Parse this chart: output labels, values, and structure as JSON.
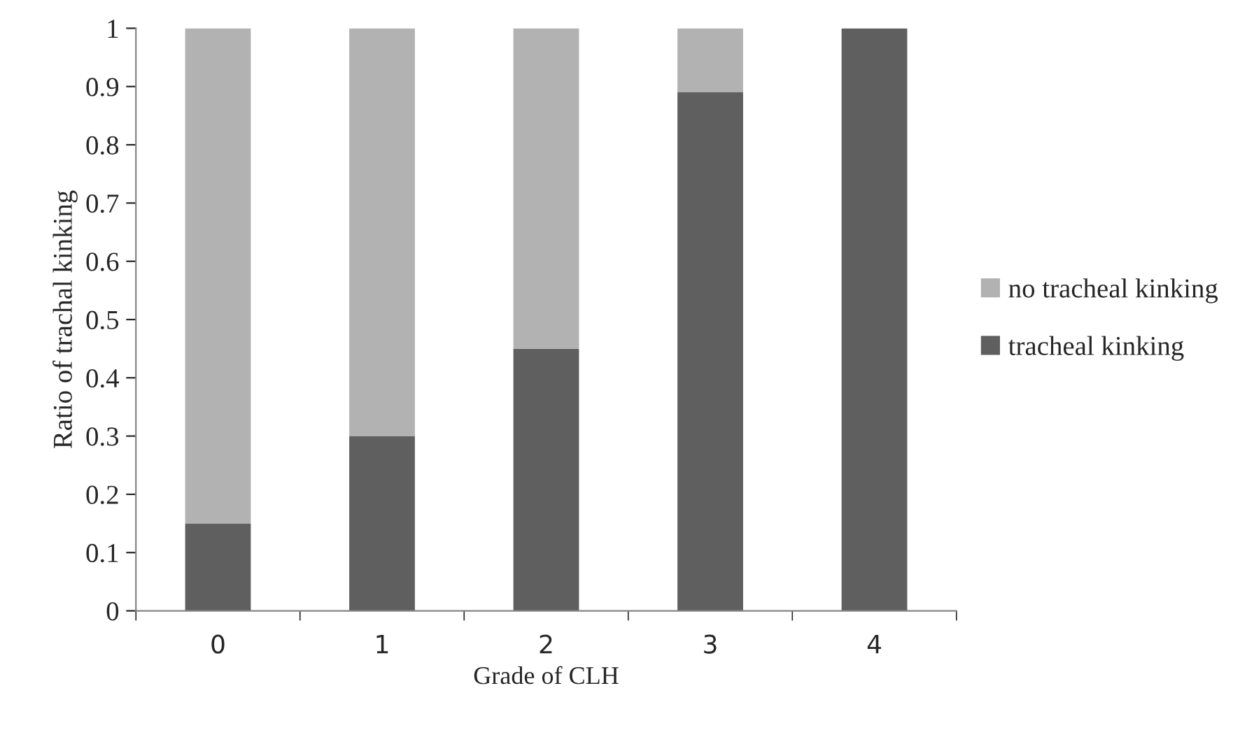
{
  "chart_data": {
    "type": "bar",
    "stacked": true,
    "xlabel": "Grade of CLH",
    "ylabel": "Ratio of trachal kinking",
    "categories": [
      "0",
      "1",
      "2",
      "3",
      "4"
    ],
    "series": [
      {
        "name": "tracheal kinking",
        "color": "#5f5f5f",
        "values": [
          0.15,
          0.3,
          0.45,
          0.89,
          1.0
        ]
      },
      {
        "name": "no tracheal kinking",
        "color": "#b2b2b2",
        "values": [
          0.85,
          0.7,
          0.55,
          0.11,
          0.0
        ]
      }
    ],
    "ylim": [
      0,
      1
    ],
    "yticks": [
      0,
      0.1,
      0.2,
      0.3,
      0.4,
      0.5,
      0.6,
      0.7,
      0.8,
      0.9,
      {
        "value": 1,
        "label": "1"
      }
    ],
    "grid": false,
    "legend": "right"
  }
}
